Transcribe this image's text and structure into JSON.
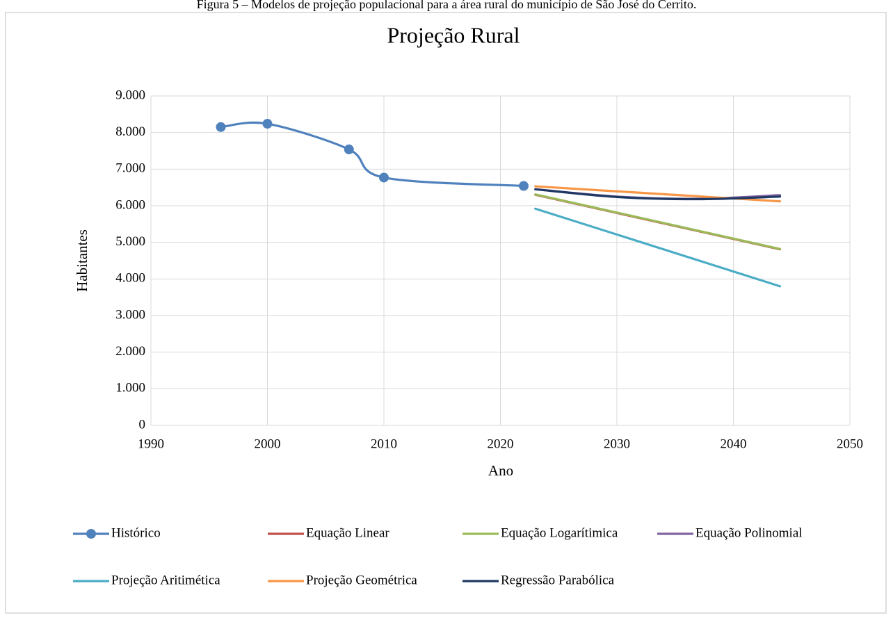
{
  "caption": "Figura 5 – Modelos de projeção populacional para a área rural do município de São José do Cerrito.",
  "chart_data": {
    "type": "line",
    "title": "Projeção Rural",
    "x_label": "Ano",
    "y_label": "Habitantes",
    "xlim": [
      1990,
      2050
    ],
    "xticks": [
      1990,
      2000,
      2010,
      2020,
      2030,
      2040,
      2050
    ],
    "ylim": [
      0,
      9000
    ],
    "yticks": [
      0,
      {
        "value": 1000,
        "label": "1.000"
      },
      {
        "value": 2000,
        "label": "2.000"
      },
      {
        "value": 3000,
        "label": "3.000"
      },
      {
        "value": 4000,
        "label": "4.000"
      },
      {
        "value": 5000,
        "label": "5.000"
      },
      {
        "value": 6000,
        "label": "6.000"
      },
      {
        "value": 7000,
        "label": "7.000"
      },
      {
        "value": 8000,
        "label": "8.000"
      },
      {
        "value": 9000,
        "label": "9.000"
      }
    ],
    "grid": true,
    "legend": "bottom",
    "series": [
      {
        "name": "Histórico",
        "color": "#4f81bd",
        "smooth": true,
        "marker": true,
        "x": [
          1996,
          2000,
          2007,
          2010,
          2022
        ],
        "values": [
          8150,
          8240,
          7540,
          6770,
          6540
        ]
      },
      {
        "name": "Equação Linear",
        "color": "#c0504d",
        "x": [
          2023,
          2044
        ],
        "values": [
          6300,
          4810
        ]
      },
      {
        "name": "Equação Logarítimica",
        "color": "#9bbb59",
        "x": [
          2023,
          2044
        ],
        "values": [
          6310,
          4820
        ]
      },
      {
        "name": "Equação Polinomial",
        "color": "#8064a2",
        "smooth": true,
        "x": [
          2023,
          2030,
          2037,
          2044
        ],
        "values": [
          6450,
          6250,
          6190,
          6290
        ]
      },
      {
        "name": "Projeção Aritimética",
        "color": "#4bacc6",
        "x": [
          2023,
          2044
        ],
        "values": [
          5920,
          3800
        ]
      },
      {
        "name": "Projeção Geométrica",
        "color": "#f79646",
        "x": [
          2023,
          2044
        ],
        "values": [
          6530,
          6120
        ]
      },
      {
        "name": "Regressão Parabólica",
        "color": "#1f3864",
        "smooth": true,
        "x": [
          2023,
          2030,
          2037,
          2044
        ],
        "values": [
          6450,
          6240,
          6180,
          6250
        ]
      }
    ]
  }
}
